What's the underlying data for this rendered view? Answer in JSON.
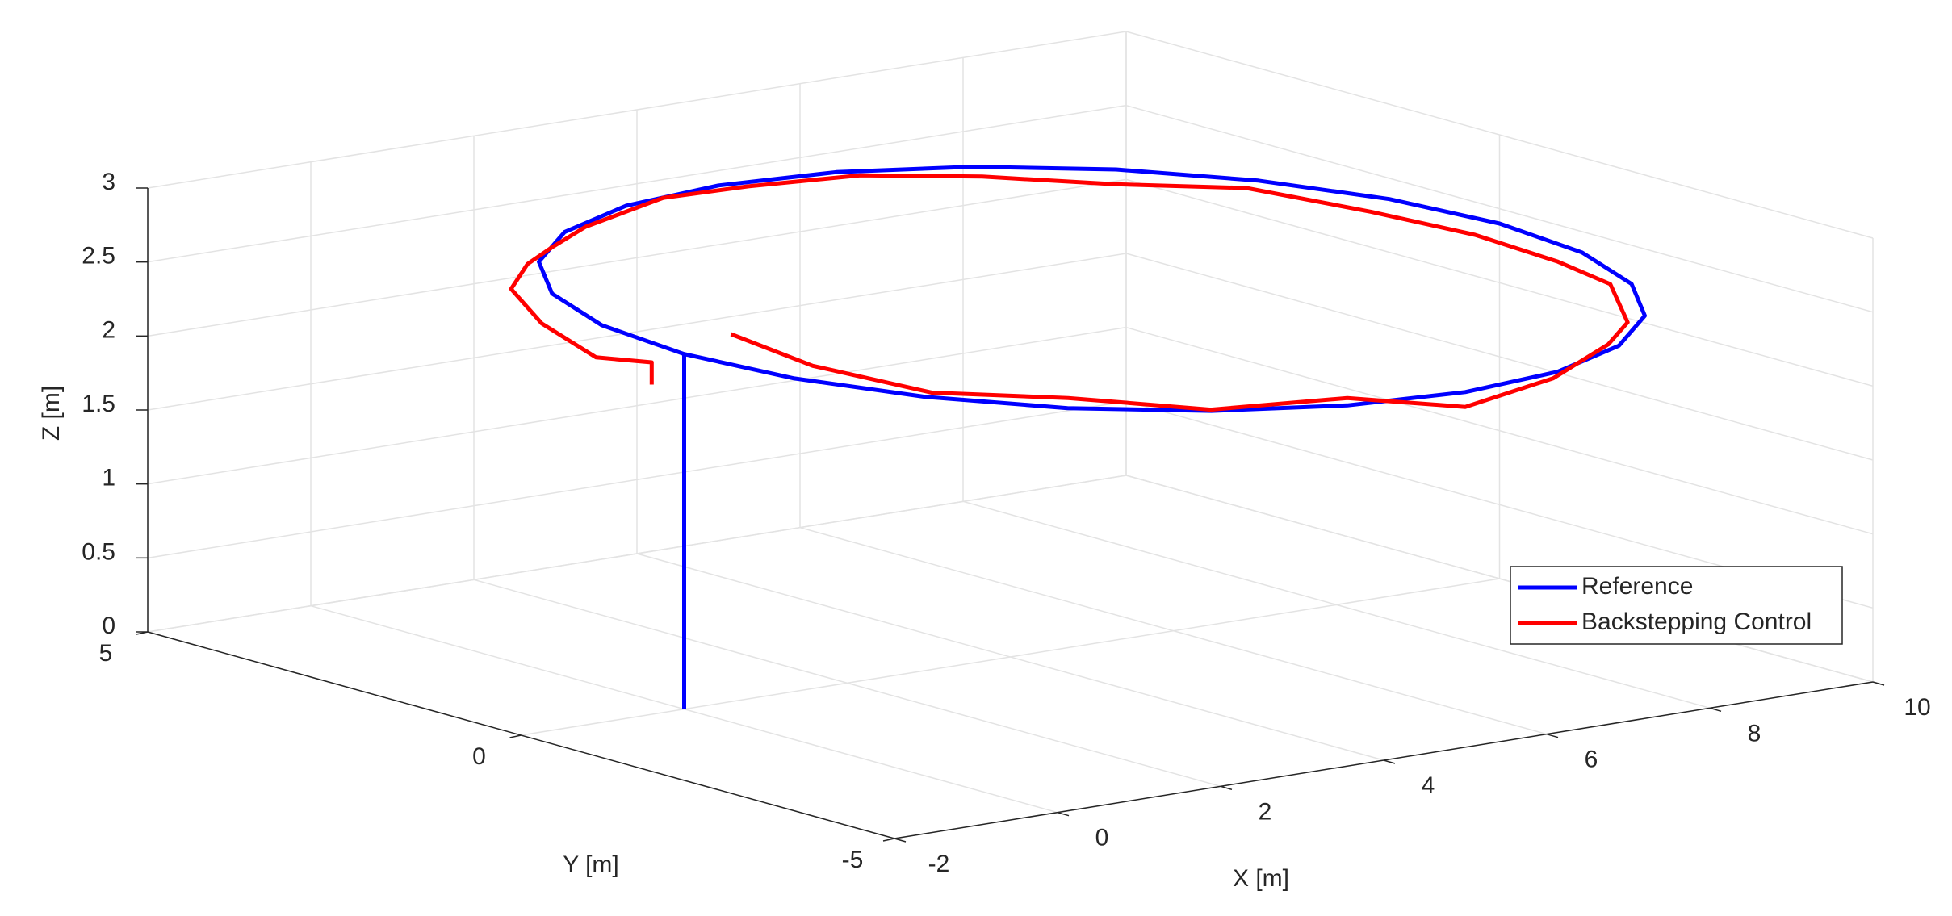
{
  "chart_data": {
    "type": "line3d",
    "xlabel": "X [m]",
    "ylabel": "Y [m]",
    "zlabel": "Z [m]",
    "xlim": [
      -2,
      10
    ],
    "ylim": [
      -5,
      5
    ],
    "zlim": [
      0,
      3
    ],
    "xticks": [
      -2,
      0,
      2,
      4,
      6,
      8,
      10
    ],
    "yticks": [
      -5,
      0,
      5
    ],
    "zticks": [
      0,
      0.5,
      1,
      1.5,
      2,
      2.5,
      3
    ],
    "grid": true,
    "legend": "southeast",
    "series": [
      {
        "name": "Reference",
        "color": "#0000ff",
        "x": [
          0,
          0,
          0.17,
          0.67,
          1.46,
          2.5,
          3.71,
          5,
          6.29,
          7.5,
          8.54,
          9.33,
          9.83,
          10,
          9.83,
          9.33,
          8.54,
          7.5,
          6.29,
          5,
          3.71,
          2.5,
          1.46,
          0.67,
          0.17,
          0
        ],
        "y": [
          0,
          0,
          -1.29,
          -2.5,
          -3.54,
          -4.33,
          -4.83,
          -5,
          -4.83,
          -4.33,
          -3.54,
          -2.5,
          -1.29,
          0,
          1.29,
          2.5,
          3.54,
          4.33,
          4.83,
          5,
          4.83,
          4.33,
          3.54,
          2.5,
          1.29,
          0
        ],
        "z": [
          0,
          2.4,
          2.4,
          2.4,
          2.4,
          2.4,
          2.4,
          2.4,
          2.4,
          2.4,
          2.4,
          2.4,
          2.4,
          2.4,
          2.4,
          2.4,
          2.4,
          2.4,
          2.4,
          2.4,
          2.4,
          2.4,
          2.4,
          2.4,
          2.4,
          2.4
        ]
      },
      {
        "name": "Backstepping Control",
        "color": "#ff0000",
        "x": [
          1.8,
          1.8,
          1.3,
          1.0,
          0.9,
          1.1,
          1.54,
          2.6,
          3.81,
          5,
          6.18,
          7.3,
          8.32,
          9.03,
          9.54,
          9.7,
          9.59,
          9.16,
          8.43,
          7.45,
          6.28,
          5,
          3.71,
          2.53,
          1.54,
          0.84,
          0.46,
          0.3
        ],
        "y": [
          2.4,
          2.4,
          2.6,
          3.0,
          3.3,
          3.3,
          3.46,
          4.16,
          4.44,
          4.6,
          4.39,
          3.98,
          3.32,
          2.33,
          1.22,
          0,
          -1.23,
          -2.4,
          -3.43,
          -4.24,
          -4.78,
          -5.0,
          -4.83,
          -4.29,
          -3.46,
          -2.4,
          -1.22,
          -0.3
        ],
        "z": [
          1.7,
          1.85,
          1.9,
          2.1,
          2.3,
          2.45,
          2.5,
          2.45,
          2.5,
          2.45,
          2.45,
          2.4,
          2.35,
          2.4,
          2.35,
          2.35,
          2.35,
          2.4,
          2.35,
          2.4,
          2.35,
          2.3,
          2.45,
          2.4,
          2.45,
          2.4,
          2.45,
          2.55
        ]
      }
    ]
  }
}
